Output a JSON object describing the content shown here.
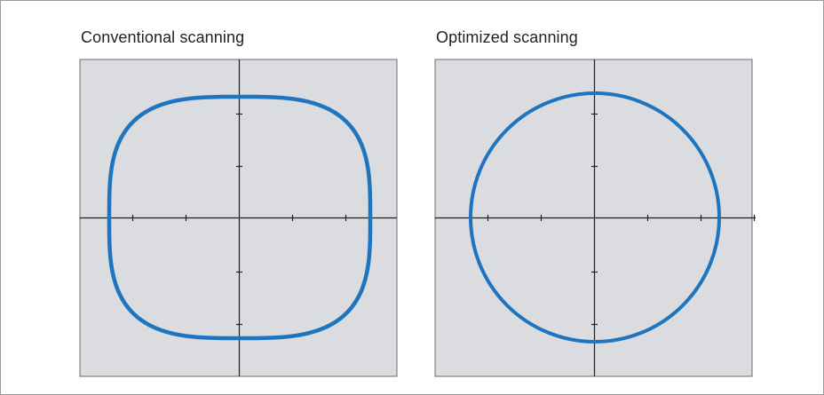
{
  "panels": [
    {
      "title": "Conventional scanning",
      "shape": "rounded-square"
    },
    {
      "title": "Optimized scanning",
      "shape": "circle"
    }
  ],
  "colors": {
    "plot_background": "#dadcdf",
    "frame_border": "#6b6b6b",
    "axis": "#1f1f1f",
    "curve": "#1f74bf",
    "page_border": "#9a9a9a"
  },
  "axes": {
    "ticks_per_side_x": 2,
    "ticks_per_side_y": 2,
    "tick_labels_shown": false,
    "grid": false
  }
}
